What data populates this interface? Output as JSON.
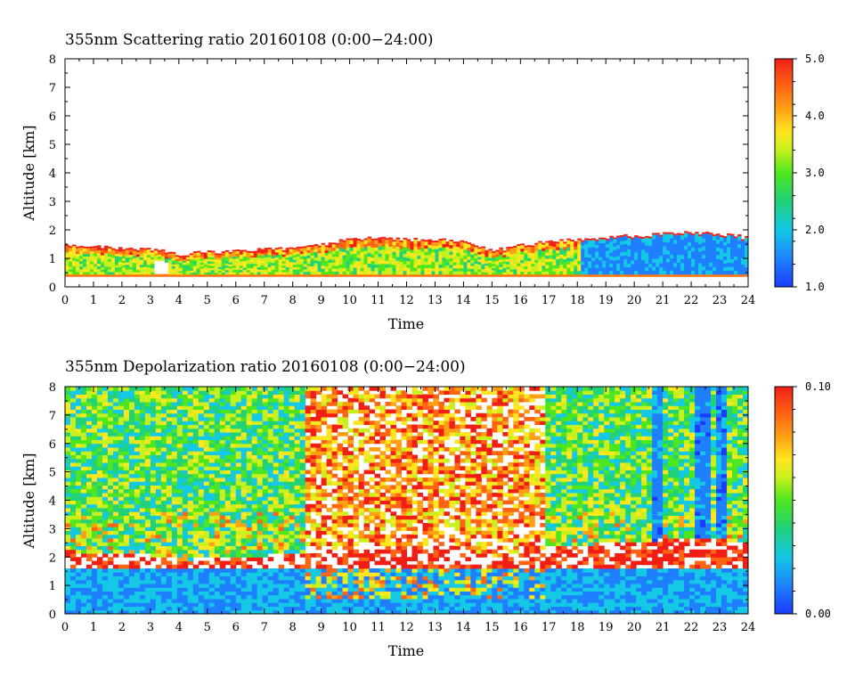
{
  "chart_data": [
    {
      "type": "heatmap",
      "title": "355nm Scattering ratio  20160108 (0:00−24:00)",
      "xlabel": "Time",
      "ylabel": "Altitude [km]",
      "xlim": [
        0,
        24
      ],
      "ylim": [
        0,
        8
      ],
      "x_ticks": [
        "0",
        "1",
        "2",
        "3",
        "4",
        "5",
        "6",
        "7",
        "8",
        "9",
        "10",
        "11",
        "12",
        "13",
        "14",
        "15",
        "16",
        "17",
        "18",
        "19",
        "20",
        "21",
        "22",
        "23",
        "24"
      ],
      "y_ticks": [
        "0",
        "1",
        "2",
        "3",
        "4",
        "5",
        "6",
        "7",
        "8"
      ],
      "colorbar": {
        "min": 1.0,
        "max": 5.0,
        "tick_labels": [
          "5.0",
          "4.0",
          "3.0",
          "2.0",
          "1.0"
        ],
        "tick_values": [
          5.0,
          4.0,
          3.0,
          2.0,
          1.0
        ]
      },
      "boundary_layer_top_km": {
        "time_h": [
          0,
          1,
          2,
          3,
          4,
          5,
          6,
          7,
          8,
          9,
          10,
          11,
          12,
          13,
          14,
          15,
          16,
          17,
          18,
          19,
          20,
          21,
          22,
          23,
          24
        ],
        "altitude": [
          1.4,
          1.35,
          1.3,
          1.25,
          1.1,
          1.15,
          1.2,
          1.25,
          1.3,
          1.45,
          1.6,
          1.65,
          1.6,
          1.6,
          1.5,
          1.2,
          1.4,
          1.55,
          1.6,
          1.7,
          1.75,
          1.8,
          1.85,
          1.8,
          1.65
        ]
      },
      "grid": false
    },
    {
      "type": "heatmap",
      "title": "355nm Depolarization ratio  20160108 (0:00−24:00)",
      "xlabel": "Time",
      "ylabel": "Altitude [km]",
      "xlim": [
        0,
        24
      ],
      "ylim": [
        0,
        8
      ],
      "x_ticks": [
        "0",
        "1",
        "2",
        "3",
        "4",
        "5",
        "6",
        "7",
        "8",
        "9",
        "10",
        "11",
        "12",
        "13",
        "14",
        "15",
        "16",
        "17",
        "18",
        "19",
        "20",
        "21",
        "22",
        "23",
        "24"
      ],
      "y_ticks": [
        "0",
        "1",
        "2",
        "3",
        "4",
        "5",
        "6",
        "7",
        "8"
      ],
      "colorbar": {
        "min": 0.0,
        "max": 0.1,
        "tick_labels": [
          "0.10",
          "0.00"
        ],
        "tick_values": [
          0.1,
          0.0
        ]
      },
      "noisy_region_time_h": [
        8.3,
        16.8
      ],
      "clear_columns_time_h": [
        20.7,
        22.3,
        22.9
      ],
      "grid": false
    }
  ],
  "colors": {
    "scale": [
      "#1a3cff",
      "#1e7fff",
      "#14c8e6",
      "#22d278",
      "#4ee61e",
      "#c8f01e",
      "#ffe61e",
      "#ffa014",
      "#ff6414",
      "#f01e14"
    ]
  }
}
